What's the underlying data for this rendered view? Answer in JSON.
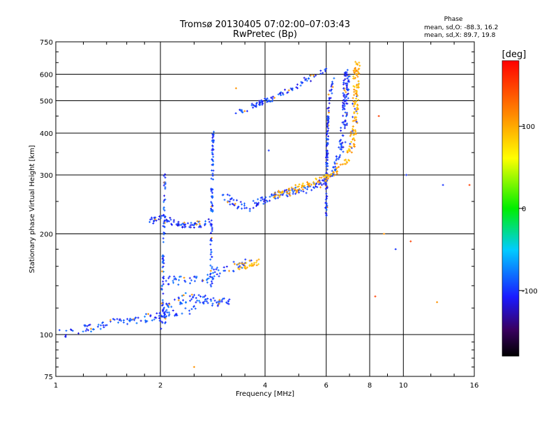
{
  "chart_data": {
    "type": "scatter",
    "title": "Tromsø 20130405 07:02:00–07:03:43",
    "subtitle": "RwPretec (Bp)",
    "xlabel": "Frequency [MHz]",
    "ylabel": "Stationary phase Virtual Height [km]",
    "x_scale": "log",
    "y_scale": "log",
    "xlim": [
      1,
      16
    ],
    "ylim": [
      75,
      750
    ],
    "x_ticks": [
      {
        "value": 1,
        "label": "1"
      },
      {
        "value": 2,
        "label": "2"
      },
      {
        "value": 4,
        "label": "4"
      },
      {
        "value": 6,
        "label": "6"
      },
      {
        "value": 8,
        "label": "8"
      },
      {
        "value": 10,
        "label": "10"
      },
      {
        "value": 16,
        "label": "16"
      }
    ],
    "x_gridlines": [
      2,
      4,
      6,
      8,
      10
    ],
    "y_ticks": [
      {
        "value": 75,
        "label": "75"
      },
      {
        "value": 100,
        "label": "100"
      },
      {
        "value": 200,
        "label": "200"
      },
      {
        "value": 300,
        "label": "300"
      },
      {
        "value": 400,
        "label": "400"
      },
      {
        "value": 500,
        "label": "500"
      },
      {
        "value": 600,
        "label": "600"
      },
      {
        "value": 750,
        "label": "750"
      }
    ],
    "y_gridlines": [
      100,
      200,
      300,
      400,
      500,
      600
    ],
    "stats": {
      "heading": "Phase",
      "line_o": "mean, sd,O:  -88.3, 16.2",
      "line_x": "mean, sd,X:  89.7, 19.8"
    },
    "colorbar": {
      "label": "[deg]",
      "range": [
        -180,
        180
      ],
      "ticks": [
        {
          "value": 100,
          "label": "100"
        },
        {
          "value": 0,
          "label": "0"
        },
        {
          "value": -100,
          "label": "-100"
        }
      ]
    },
    "traces": [
      {
        "name": "ground-echo",
        "phase": -95,
        "scatter_f": 0.03,
        "scatter_h": 0.03,
        "count": 100,
        "points": [
          [
            1.0,
            100
          ],
          [
            1.2,
            104
          ],
          [
            1.4,
            107
          ],
          [
            1.6,
            110
          ],
          [
            1.8,
            112
          ],
          [
            2.0,
            114
          ],
          [
            2.2,
            117
          ],
          [
            2.5,
            120
          ]
        ]
      },
      {
        "name": "es-ladder-1",
        "phase": -92,
        "scatter_f": 0.03,
        "scatter_h": 0.03,
        "count": 90,
        "points": [
          [
            2.0,
            110
          ],
          [
            2.1,
            120
          ],
          [
            2.2,
            125
          ],
          [
            2.4,
            130
          ],
          [
            2.6,
            128
          ],
          [
            2.8,
            125
          ],
          [
            3.1,
            125
          ]
        ]
      },
      {
        "name": "es-ladder-2",
        "phase": -92,
        "scatter_f": 0.03,
        "scatter_h": 0.03,
        "count": 70,
        "points": [
          [
            2.1,
            145
          ],
          [
            2.4,
            145
          ],
          [
            2.7,
            145
          ],
          [
            3.0,
            155
          ],
          [
            3.3,
            160
          ],
          [
            3.6,
            165
          ]
        ]
      },
      {
        "name": "f1-cusp-1",
        "phase": -95,
        "scatter_f": 0.006,
        "scatter_h": 0.02,
        "count": 70,
        "points": [
          [
            2.02,
            105
          ],
          [
            2.03,
            140
          ],
          [
            2.04,
            180
          ],
          [
            2.05,
            220
          ],
          [
            2.06,
            300
          ]
        ]
      },
      {
        "name": "f1-lower-branch",
        "phase": -100,
        "scatter_f": 0.02,
        "scatter_h": 0.02,
        "count": 80,
        "points": [
          [
            1.85,
            218
          ],
          [
            2.05,
            225
          ],
          [
            2.2,
            215
          ],
          [
            2.4,
            212
          ],
          [
            2.6,
            214
          ],
          [
            2.75,
            218
          ]
        ]
      },
      {
        "name": "f1-cusp-2",
        "phase": -95,
        "scatter_f": 0.006,
        "scatter_h": 0.03,
        "count": 90,
        "points": [
          [
            2.8,
            140
          ],
          [
            2.8,
            185
          ],
          [
            2.81,
            230
          ],
          [
            2.82,
            300
          ],
          [
            2.84,
            400
          ]
        ]
      },
      {
        "name": "f2-o-trace",
        "phase": -100,
        "scatter_f": 0.02,
        "scatter_h": 0.025,
        "count": 260,
        "points": [
          [
            3.0,
            260
          ],
          [
            3.3,
            245
          ],
          [
            3.6,
            240
          ],
          [
            4.0,
            255
          ],
          [
            4.6,
            265
          ],
          [
            5.2,
            272
          ],
          [
            5.8,
            285
          ],
          [
            6.2,
            300
          ],
          [
            6.5,
            330
          ],
          [
            6.7,
            380
          ],
          [
            6.8,
            460
          ],
          [
            6.85,
            560
          ],
          [
            6.9,
            620
          ]
        ]
      },
      {
        "name": "f2-cusp",
        "phase": -100,
        "scatter_f": 0.006,
        "scatter_h": 0.03,
        "count": 120,
        "points": [
          [
            6.0,
            230
          ],
          [
            6.02,
            300
          ],
          [
            6.05,
            400
          ],
          [
            6.1,
            500
          ],
          [
            6.3,
            580
          ]
        ]
      },
      {
        "name": "f2-x-trace",
        "phase": 100,
        "scatter_f": 0.02,
        "scatter_h": 0.02,
        "count": 220,
        "points": [
          [
            4.2,
            260
          ],
          [
            5.0,
            275
          ],
          [
            5.8,
            290
          ],
          [
            6.4,
            305
          ],
          [
            6.8,
            330
          ],
          [
            7.1,
            370
          ],
          [
            7.25,
            440
          ],
          [
            7.3,
            520
          ],
          [
            7.32,
            600
          ],
          [
            7.35,
            650
          ]
        ]
      },
      {
        "name": "f2-m-trace",
        "phase": -100,
        "scatter_f": 0.02,
        "scatter_h": 0.015,
        "count": 90,
        "points": [
          [
            3.3,
            460
          ],
          [
            3.6,
            475
          ],
          [
            4.2,
            510
          ],
          [
            4.8,
            545
          ],
          [
            5.3,
            580
          ],
          [
            5.8,
            610
          ],
          [
            6.0,
            625
          ]
        ]
      },
      {
        "name": "es-x-trace",
        "phase": 95,
        "scatter_f": 0.03,
        "scatter_h": 0.02,
        "count": 30,
        "points": [
          [
            3.4,
            160
          ],
          [
            3.6,
            162
          ],
          [
            3.8,
            165
          ]
        ]
      },
      {
        "name": "noise",
        "phase": 0,
        "scatter_f": 0.0,
        "scatter_h": 0.0,
        "count": 0,
        "points": [
          [
            3.3,
            545
          ],
          [
            4.1,
            355
          ],
          [
            8.5,
            450
          ],
          [
            8.8,
            200
          ],
          [
            10.2,
            300
          ],
          [
            10.5,
            190
          ],
          [
            12.5,
            125
          ],
          [
            13.0,
            280
          ],
          [
            15.5,
            280
          ],
          [
            2.5,
            80
          ],
          [
            9.5,
            180
          ],
          [
            8.3,
            130
          ]
        ]
      }
    ]
  }
}
